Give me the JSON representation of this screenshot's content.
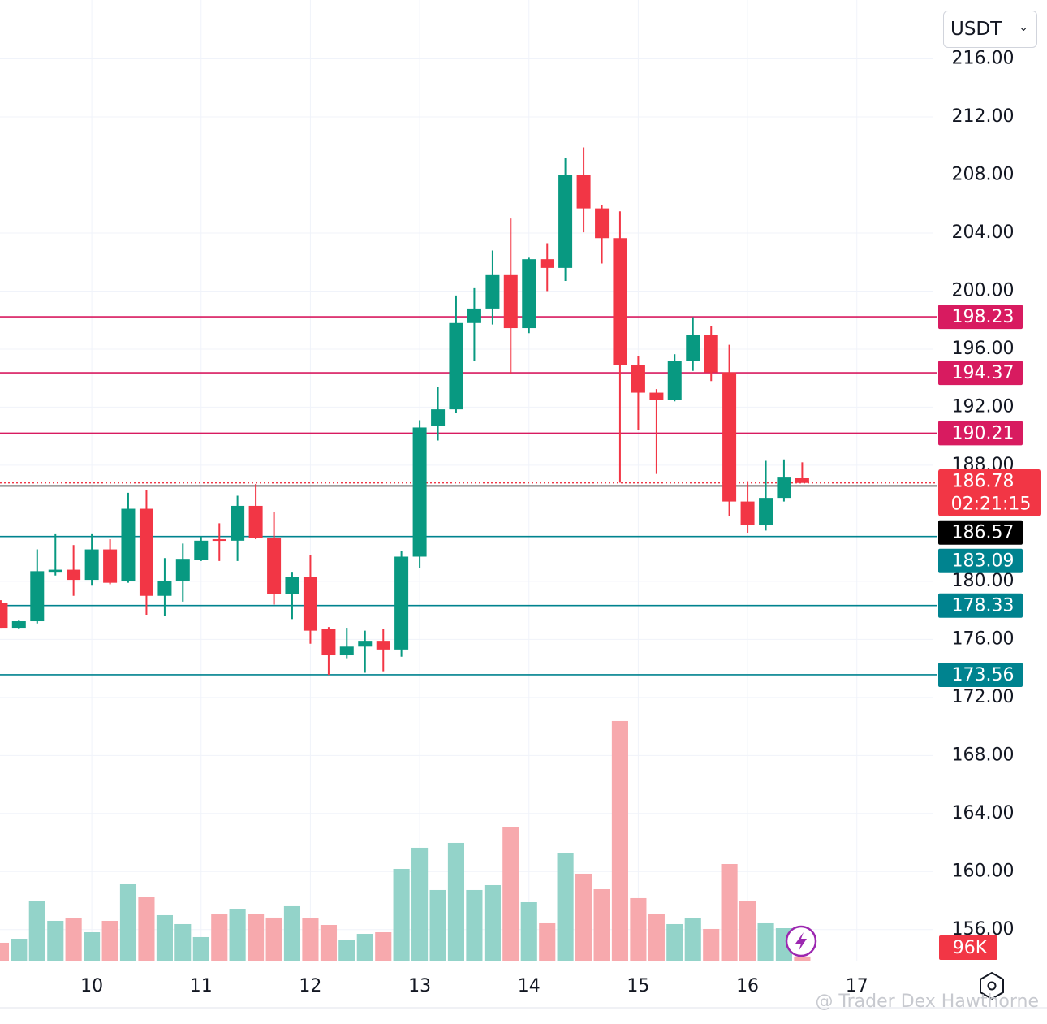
{
  "chart_data": {
    "type": "candlestick",
    "currency": "USDT",
    "watermark": "@ Trader Dex Hawthorne",
    "x": [
      9.167,
      9.333,
      9.5,
      9.667,
      9.833,
      10,
      10.167,
      10.333,
      10.5,
      10.667,
      10.833,
      11,
      11.167,
      11.333,
      11.5,
      11.667,
      11.833,
      12,
      12.167,
      12.333,
      12.5,
      12.667,
      12.833,
      13,
      13.167,
      13.333,
      13.5,
      13.667,
      13.833,
      14,
      14.167,
      14.333,
      14.5,
      14.667,
      14.833,
      15,
      15.167,
      15.333,
      15.5,
      15.667,
      15.833,
      16,
      16.167,
      16.333,
      16.5
    ],
    "open": [
      178.5,
      176.8,
      177.25,
      180.6,
      180.8,
      180.1,
      182.2,
      180.0,
      185.0,
      179.0,
      180.05,
      181.5,
      182.9,
      182.8,
      185.2,
      183.0,
      179.1,
      180.3,
      176.7,
      174.9,
      175.5,
      175.9,
      175.3,
      181.7,
      190.7,
      191.85,
      197.8,
      198.8,
      201.1,
      197.45,
      202.2,
      201.6,
      208.0,
      205.7,
      203.65,
      194.9,
      193.0,
      192.5,
      195.2,
      197.0,
      194.4,
      185.5,
      183.9,
      185.75,
      187.1
    ],
    "high": [
      178.7,
      177.3,
      182.2,
      183.3,
      182.5,
      183.3,
      182.9,
      186.1,
      186.3,
      181.6,
      182.6,
      183.1,
      184.0,
      185.9,
      186.7,
      184.75,
      180.6,
      181.8,
      176.85,
      176.8,
      176.6,
      176.7,
      182.1,
      191.1,
      193.4,
      199.7,
      200.2,
      202.8,
      205.0,
      202.3,
      203.3,
      209.15,
      209.9,
      205.95,
      205.5,
      195.5,
      193.25,
      195.65,
      198.2,
      197.6,
      196.3,
      186.9,
      188.3,
      188.4,
      188.2
    ],
    "low": [
      176.8,
      176.7,
      177.1,
      180.4,
      179.0,
      179.7,
      179.8,
      179.9,
      177.7,
      177.6,
      178.6,
      181.4,
      181.4,
      181.4,
      182.9,
      178.4,
      177.4,
      175.7,
      173.55,
      174.7,
      173.7,
      173.8,
      174.8,
      180.9,
      189.7,
      191.6,
      195.2,
      197.7,
      194.3,
      197.1,
      200.0,
      200.7,
      204.05,
      201.9,
      186.8,
      190.4,
      187.4,
      192.4,
      194.5,
      193.8,
      184.5,
      183.35,
      183.5,
      185.5,
      186.8
    ],
    "close": [
      176.8,
      177.25,
      180.7,
      180.8,
      180.1,
      182.2,
      179.9,
      185.0,
      179.0,
      180.05,
      181.55,
      182.8,
      182.8,
      185.2,
      183.0,
      179.1,
      180.3,
      176.6,
      174.9,
      175.5,
      175.9,
      175.3,
      181.7,
      190.6,
      191.85,
      197.8,
      198.8,
      201.1,
      197.45,
      202.2,
      201.6,
      208.0,
      205.7,
      203.65,
      194.9,
      193.0,
      192.5,
      195.2,
      197.0,
      194.4,
      185.5,
      183.9,
      185.75,
      187.15,
      186.78
    ],
    "volume": {
      "values": [
        412000,
        505000,
        1366000,
        917000,
        973000,
        655000,
        917000,
        1759000,
        1459000,
        1048000,
        842000,
        543000,
        1066000,
        1197000,
        1085000,
        992000,
        1254000,
        973000,
        823000,
        486000,
        617000,
        655000,
        2114000,
        2601000,
        1628000,
        2713000,
        1628000,
        1740000,
        3068000,
        1347000,
        861000,
        2488000,
        2002000,
        1646000,
        5519000,
        1441000,
        1085000,
        842000,
        973000,
        730000,
        2226000,
        1366000,
        861000,
        748000,
        96000
      ],
      "value_labels": [
        null,
        null,
        null,
        null,
        null,
        null,
        null,
        null,
        null,
        null,
        null,
        null,
        null,
        null,
        null,
        null,
        null,
        null,
        null,
        null,
        null,
        null,
        null,
        null,
        null,
        null,
        null,
        null,
        null,
        null,
        null,
        null,
        null,
        null,
        null,
        null,
        null,
        null,
        null,
        null,
        null,
        null,
        null,
        null,
        "96K"
      ],
      "ylim": [
        0,
        22130000
      ]
    },
    "up_color": "#089981",
    "down_color": "#f23645",
    "volume_up_color": "#93d3c9",
    "volume_down_color": "#f7a9ad",
    "xlim": [
      9.16,
      17.7
    ],
    "xticks": [
      10,
      11,
      12,
      13,
      14,
      15,
      16,
      17
    ],
    "ylim": [
      153.86,
      220.06
    ],
    "yticks": [
      {
        "value": 156,
        "label": "156.00"
      },
      {
        "value": 160,
        "label": "160.00"
      },
      {
        "value": 164,
        "label": "164.00"
      },
      {
        "value": 168,
        "label": "168.00"
      },
      {
        "value": 172,
        "label": "172.00"
      },
      {
        "value": 176,
        "label": "176.00"
      },
      {
        "value": 180,
        "label": "180.00"
      },
      {
        "value": 188,
        "label": "188.00"
      },
      {
        "value": 192,
        "label": "192.00"
      },
      {
        "value": 196,
        "label": "196.00"
      },
      {
        "value": 200,
        "label": "200.00"
      },
      {
        "value": 204,
        "label": "204.00"
      },
      {
        "value": 208,
        "label": "208.00"
      },
      {
        "value": 212,
        "label": "212.00"
      },
      {
        "value": 216,
        "label": "216.00"
      }
    ],
    "grid": true,
    "price_lines": [
      {
        "value": 198.23,
        "color": "#d81b60"
      },
      {
        "value": 194.37,
        "color": "#d81b60"
      },
      {
        "value": 190.21,
        "color": "#d81b60"
      },
      {
        "value": 186.57,
        "color": "#000000"
      },
      {
        "value": 183.09,
        "color": "#00838f"
      },
      {
        "value": 178.33,
        "color": "#00838f"
      },
      {
        "value": 173.56,
        "color": "#00838f"
      }
    ],
    "last_price": 186.78,
    "countdown": "02:21:15"
  }
}
